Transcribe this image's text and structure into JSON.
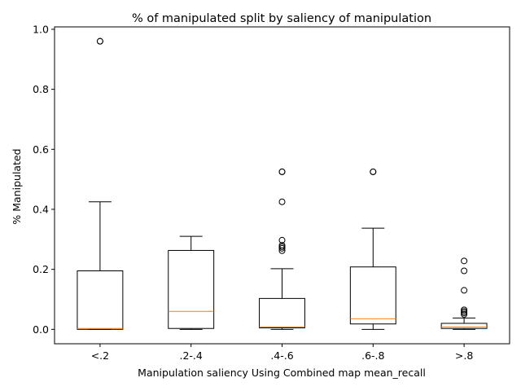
{
  "chart_data": {
    "type": "boxplot",
    "title": "% of manipulated split by saliency of manipulation",
    "xlabel": "Manipulation saliency Using Combined map mean_recall",
    "ylabel": "% Manipulated",
    "ylim": [
      -0.048,
      1.008
    ],
    "yticks": [
      0.0,
      0.2,
      0.4,
      0.6,
      0.8,
      1.0
    ],
    "ytick_labels": [
      "0.0",
      "0.2",
      "0.4",
      "0.6",
      "0.8",
      "1.0"
    ],
    "categories": [
      "<.2",
      ".2-.4",
      ".4-.6",
      ".6-.8",
      ">.8"
    ],
    "grid": false,
    "colors": {
      "box": "#000000",
      "median": "#ff7f0e",
      "flier": "#000000"
    },
    "boxes": [
      {
        "category": "<.2",
        "whisker_low": 0.0,
        "q1": 0.0,
        "median": 0.003,
        "q3": 0.195,
        "whisker_high": 0.425,
        "fliers": [
          0.96,
          0.96
        ]
      },
      {
        "category": ".2-.4",
        "whisker_low": 0.0,
        "q1": 0.003,
        "median": 0.06,
        "q3": 0.263,
        "whisker_high": 0.31,
        "fliers": []
      },
      {
        "category": ".4-.6",
        "whisker_low": 0.0,
        "q1": 0.005,
        "median": 0.008,
        "q3": 0.103,
        "whisker_high": 0.202,
        "fliers": [
          0.262,
          0.27,
          0.275,
          0.28,
          0.297,
          0.425,
          0.525,
          0.525
        ]
      },
      {
        "category": ".6-.8",
        "whisker_low": 0.0,
        "q1": 0.018,
        "median": 0.035,
        "q3": 0.208,
        "whisker_high": 0.337,
        "fliers": [
          0.525,
          0.525
        ]
      },
      {
        "category": ">.8",
        "whisker_low": 0.0,
        "q1": 0.003,
        "median": 0.008,
        "q3": 0.02,
        "whisker_high": 0.038,
        "fliers": [
          0.05,
          0.055,
          0.06,
          0.065,
          0.13,
          0.195,
          0.228
        ]
      }
    ]
  }
}
